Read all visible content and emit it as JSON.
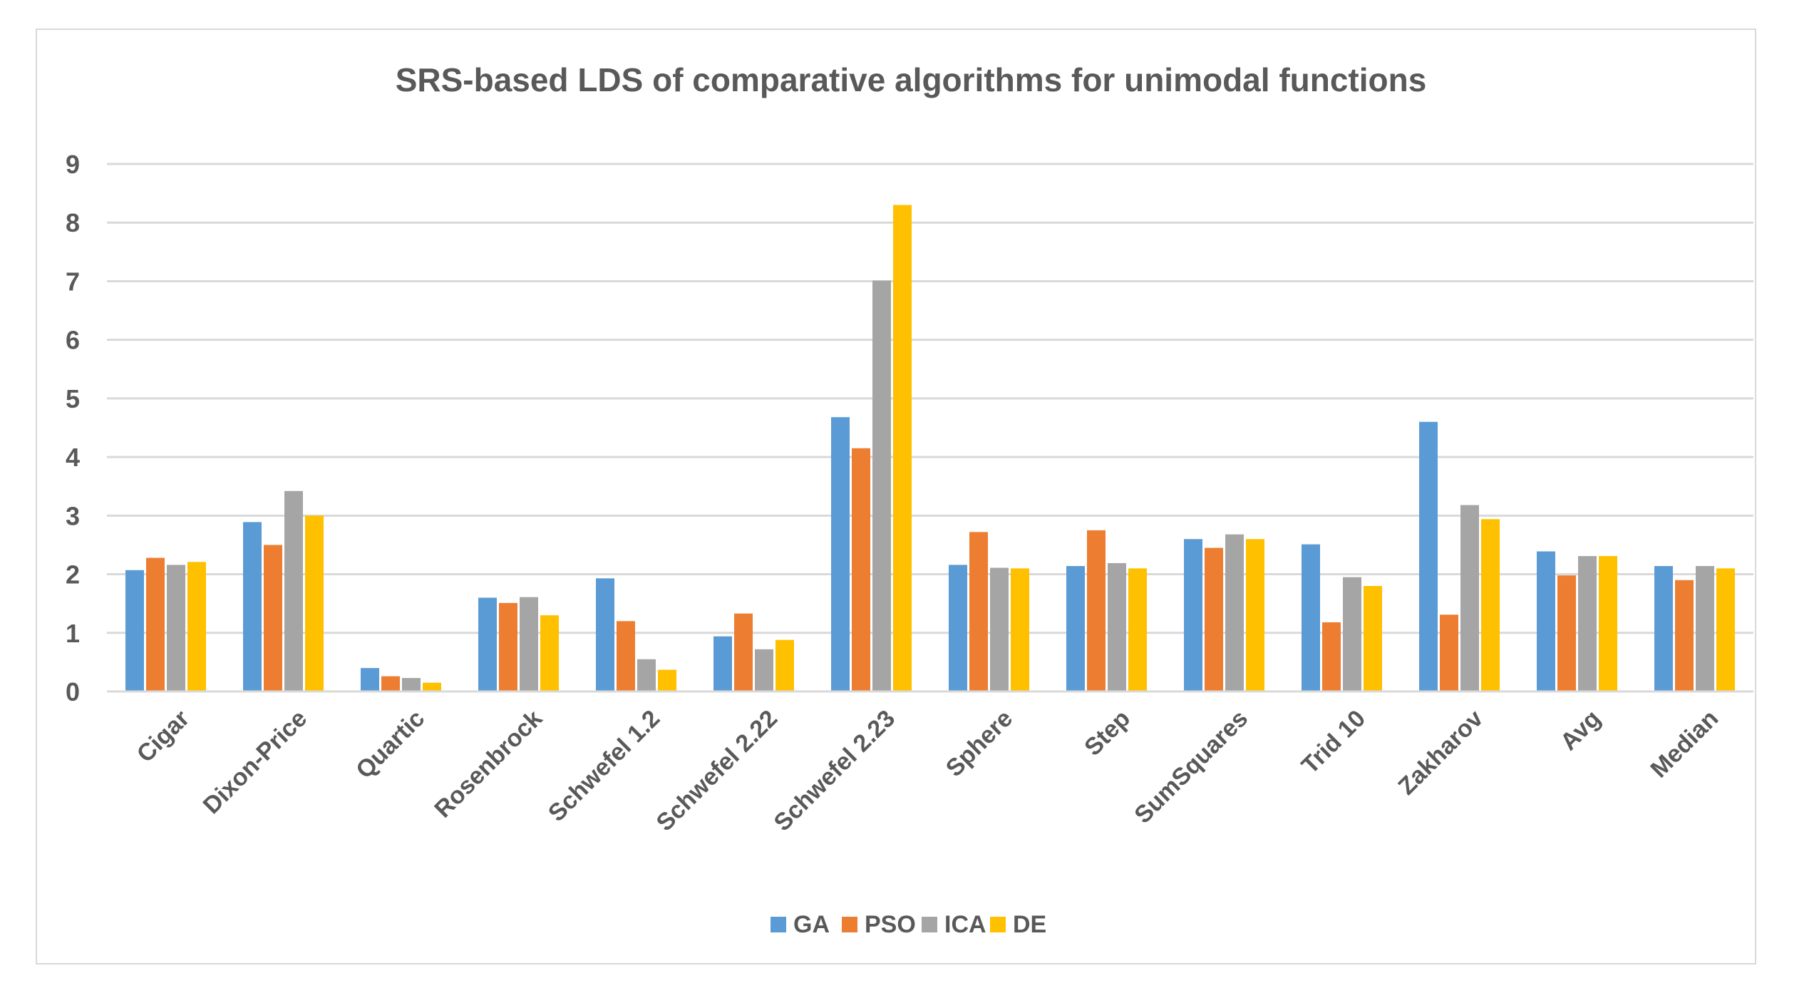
{
  "chart_data": {
    "type": "bar",
    "title": "SRS-based LDS of comparative algorithms for unimodal functions",
    "xlabel": "",
    "ylabel": "",
    "ylim": [
      0,
      9
    ],
    "yticks": [
      "0",
      "1",
      "2",
      "3",
      "4",
      "5",
      "6",
      "7",
      "8",
      "9"
    ],
    "grid": true,
    "legend_position": "bottom",
    "categories": [
      "Cigar",
      "Dixon-Price",
      "Quartic",
      "Rosenbrock",
      "Schwefel 1.2",
      "Schwefel 2.22",
      "Schwefel 2.23",
      "Sphere",
      "Step",
      "SumSquares",
      "Trid 10",
      "Zakharov",
      "Avg",
      "Median"
    ],
    "series": [
      {
        "name": "GA",
        "color": "#5b9bd5",
        "values": [
          2.07,
          2.89,
          0.4,
          1.6,
          1.93,
          0.94,
          4.68,
          2.16,
          2.14,
          2.6,
          2.51,
          4.6,
          2.39,
          2.14
        ]
      },
      {
        "name": "PSO",
        "color": "#ed7d31",
        "values": [
          2.28,
          2.5,
          0.26,
          1.51,
          1.2,
          1.33,
          4.15,
          2.72,
          2.75,
          2.45,
          1.18,
          1.31,
          1.98,
          1.9
        ]
      },
      {
        "name": "ICA",
        "color": "#a5a5a5",
        "values": [
          2.16,
          3.42,
          0.23,
          1.61,
          0.55,
          0.72,
          7.01,
          2.11,
          2.19,
          2.68,
          1.95,
          3.18,
          2.31,
          2.14
        ]
      },
      {
        "name": "DE",
        "color": "#ffc000",
        "values": [
          2.21,
          3.0,
          0.15,
          1.3,
          0.37,
          0.88,
          8.3,
          2.1,
          2.1,
          2.6,
          1.8,
          2.94,
          2.31,
          2.1
        ]
      }
    ]
  }
}
